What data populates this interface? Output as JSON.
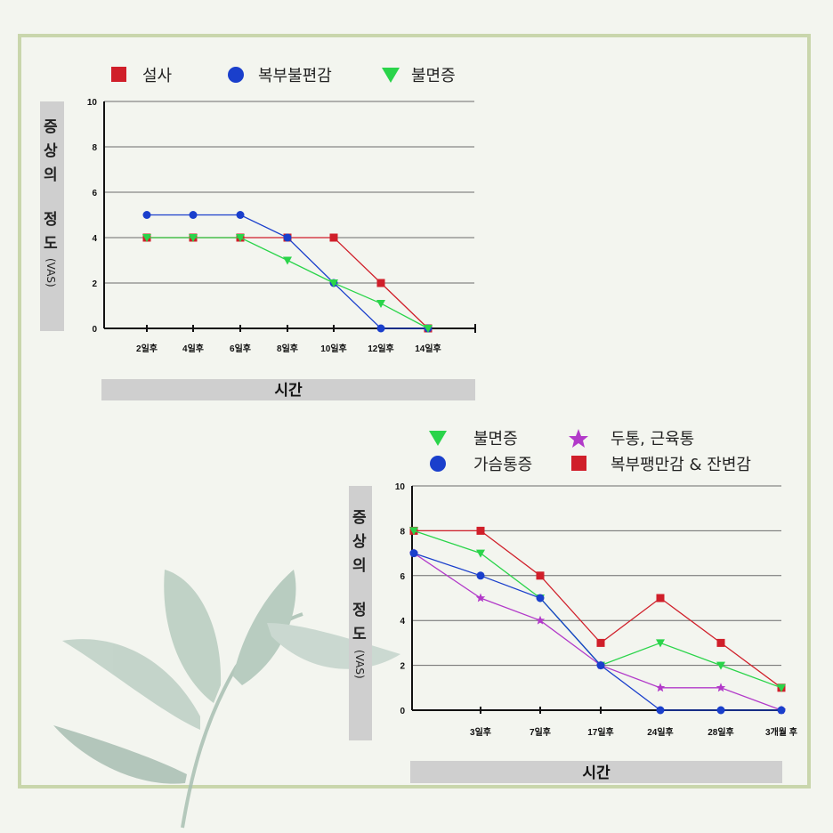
{
  "colors": {
    "red": "#d01f2a",
    "blue": "#1a3fcc",
    "green": "#2ad44a",
    "purple": "#b23ac9"
  },
  "chart_data": [
    {
      "type": "line",
      "title": "",
      "xlabel": "시간",
      "ylabel": "증상의 정도(VAS)",
      "ylabel_parts": [
        "증",
        "상",
        "의",
        "정",
        "도"
      ],
      "ylabel_unit": "(VAS)",
      "ylim": [
        0,
        10
      ],
      "yticks": [
        "0",
        "2",
        "4",
        "6",
        "8",
        "10"
      ],
      "categories": [
        "2일후",
        "4일후",
        "6일후",
        "8일후",
        "10일후",
        "12일후",
        "14일후"
      ],
      "series": [
        {
          "name": "설사",
          "marker": "square",
          "color": "#d01f2a",
          "values": [
            4,
            4,
            4,
            4,
            4,
            2,
            0
          ]
        },
        {
          "name": "복부불편감",
          "marker": "circle",
          "color": "#1a3fcc",
          "values": [
            5,
            5,
            5,
            4,
            2,
            0,
            0
          ]
        },
        {
          "name": "불면증",
          "marker": "triangle",
          "color": "#2ad44a",
          "values": [
            4,
            4,
            4,
            3,
            2,
            1.1,
            0
          ]
        }
      ]
    },
    {
      "type": "line",
      "title": "",
      "xlabel": "시간",
      "ylabel": "증상의 정도(VAS)",
      "ylabel_parts": [
        "증",
        "상",
        "의",
        "정",
        "도"
      ],
      "ylabel_unit": "(VAS)",
      "ylim": [
        0,
        10
      ],
      "yticks": [
        "0",
        "2",
        "4",
        "6",
        "8",
        "10"
      ],
      "categories": [
        "",
        "3일후",
        "7일후",
        "17일후",
        "24일후",
        "28일후",
        "3개월 후"
      ],
      "series": [
        {
          "name": "불면증",
          "marker": "triangle",
          "color": "#2ad44a",
          "values": [
            8,
            7,
            5,
            2,
            3,
            2,
            1
          ]
        },
        {
          "name": "가슴통증",
          "marker": "circle",
          "color": "#1a3fcc",
          "values": [
            7,
            6,
            5,
            2,
            0,
            0,
            0
          ]
        },
        {
          "name": "두통, 근육통",
          "marker": "star",
          "color": "#b23ac9",
          "values": [
            7,
            5,
            4,
            2,
            1,
            1,
            0
          ]
        },
        {
          "name": "복부팽만감 & 잔변감",
          "marker": "square",
          "color": "#d01f2a",
          "values": [
            8,
            8,
            6,
            3,
            5,
            3,
            1
          ]
        }
      ]
    }
  ]
}
